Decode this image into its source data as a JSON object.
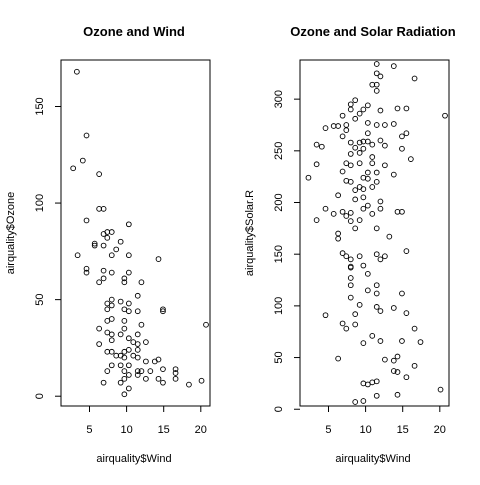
{
  "chart_data": [
    {
      "type": "scatter",
      "title": "Ozone and Wind",
      "xlabel": "airquality$Wind",
      "ylabel": "airquality$Ozone",
      "xlim": [
        1.7,
        20.7
      ],
      "ylim": [
        -3,
        172
      ],
      "xticks": [
        5,
        10,
        15,
        20
      ],
      "yticks": [
        0,
        50,
        100,
        150
      ],
      "grid": false,
      "points": [
        [
          3.3,
          168
        ],
        [
          4.6,
          135
        ],
        [
          4.1,
          122
        ],
        [
          2.8,
          118
        ],
        [
          6.3,
          115
        ],
        [
          4.6,
          91
        ],
        [
          6.9,
          97
        ],
        [
          6.3,
          97
        ],
        [
          10.3,
          89
        ],
        [
          7.4,
          85
        ],
        [
          6.9,
          84
        ],
        [
          8.0,
          85
        ],
        [
          7.4,
          82
        ],
        [
          5.7,
          79
        ],
        [
          5.7,
          78
        ],
        [
          6.9,
          78
        ],
        [
          9.2,
          80
        ],
        [
          8.6,
          76
        ],
        [
          8.0,
          73
        ],
        [
          10.3,
          73
        ],
        [
          3.4,
          73
        ],
        [
          14.3,
          71
        ],
        [
          4.6,
          66
        ],
        [
          4.6,
          64
        ],
        [
          6.9,
          65
        ],
        [
          8.0,
          64
        ],
        [
          10.3,
          64
        ],
        [
          6.9,
          61
        ],
        [
          9.7,
          61
        ],
        [
          6.3,
          59
        ],
        [
          12.0,
          59
        ],
        [
          9.7,
          59
        ],
        [
          11.5,
          52
        ],
        [
          8.0,
          50
        ],
        [
          9.2,
          49
        ],
        [
          10.3,
          48
        ],
        [
          7.4,
          48
        ],
        [
          8.0,
          47
        ],
        [
          7.4,
          45
        ],
        [
          9.7,
          45
        ],
        [
          10.3,
          44
        ],
        [
          11.5,
          44
        ],
        [
          14.9,
          45
        ],
        [
          14.9,
          44
        ],
        [
          8.0,
          40
        ],
        [
          7.4,
          39
        ],
        [
          9.7,
          39
        ],
        [
          12.0,
          37
        ],
        [
          20.7,
          37
        ],
        [
          6.3,
          35
        ],
        [
          9.7,
          35
        ],
        [
          7.4,
          33
        ],
        [
          8.0,
          32
        ],
        [
          9.2,
          32
        ],
        [
          11.5,
          32
        ],
        [
          10.3,
          30
        ],
        [
          8.0,
          29
        ],
        [
          10.9,
          28
        ],
        [
          12.6,
          28
        ],
        [
          11.5,
          27
        ],
        [
          6.3,
          27
        ],
        [
          7.4,
          23
        ],
        [
          8.0,
          23
        ],
        [
          9.7,
          23
        ],
        [
          10.3,
          24
        ],
        [
          11.5,
          24
        ],
        [
          8.6,
          21
        ],
        [
          9.2,
          21
        ],
        [
          10.9,
          21
        ],
        [
          9.7,
          20
        ],
        [
          11.5,
          20
        ],
        [
          14.3,
          19
        ],
        [
          12.6,
          18
        ],
        [
          13.8,
          18
        ],
        [
          8.0,
          16
        ],
        [
          9.2,
          16
        ],
        [
          10.3,
          16
        ],
        [
          7.4,
          13
        ],
        [
          9.7,
          13
        ],
        [
          11.5,
          13
        ],
        [
          12.0,
          13
        ],
        [
          13.2,
          13
        ],
        [
          14.9,
          14
        ],
        [
          16.6,
          14
        ],
        [
          16.6,
          12
        ],
        [
          10.3,
          11
        ],
        [
          11.5,
          11
        ],
        [
          9.7,
          9
        ],
        [
          12.6,
          9
        ],
        [
          14.3,
          9
        ],
        [
          16.6,
          9
        ],
        [
          14.9,
          7
        ],
        [
          20.1,
          8
        ],
        [
          6.9,
          7
        ],
        [
          9.2,
          7
        ],
        [
          18.4,
          6
        ],
        [
          10.3,
          4
        ],
        [
          9.7,
          1
        ]
      ]
    },
    {
      "type": "scatter",
      "title": "Ozone and Solar Radiation",
      "xlabel": "airquality$Wind",
      "ylabel": "airquality$Solar.R",
      "xlim": [
        1.7,
        20.7
      ],
      "ylim": [
        7,
        334
      ],
      "xticks": [
        5,
        10,
        15,
        20
      ],
      "yticks": [
        0,
        50,
        100,
        150,
        200,
        250,
        300
      ],
      "grid": false,
      "points": [
        [
          11.5,
          334
        ],
        [
          13.8,
          332
        ],
        [
          11.5,
          325
        ],
        [
          12.0,
          322
        ],
        [
          16.6,
          320
        ],
        [
          11.5,
          314
        ],
        [
          10.9,
          314
        ],
        [
          11.5,
          308
        ],
        [
          8.6,
          299
        ],
        [
          8.0,
          295
        ],
        [
          10.3,
          294
        ],
        [
          14.3,
          291
        ],
        [
          8.0,
          290
        ],
        [
          9.7,
          290
        ],
        [
          12.0,
          289
        ],
        [
          15.5,
          291
        ],
        [
          9.2,
          286
        ],
        [
          20.7,
          284
        ],
        [
          6.9,
          284
        ],
        [
          8.6,
          281
        ],
        [
          10.3,
          277
        ],
        [
          7.4,
          275
        ],
        [
          11.5,
          275
        ],
        [
          13.8,
          276
        ],
        [
          12.6,
          275
        ],
        [
          4.6,
          272
        ],
        [
          5.7,
          274
        ],
        [
          6.3,
          274
        ],
        [
          7.4,
          270
        ],
        [
          10.3,
          267
        ],
        [
          15.5,
          267
        ],
        [
          14.9,
          264
        ],
        [
          6.9,
          264
        ],
        [
          12.0,
          260
        ],
        [
          9.7,
          259
        ],
        [
          9.2,
          258
        ],
        [
          8.0,
          258
        ],
        [
          10.3,
          259
        ],
        [
          10.9,
          256
        ],
        [
          3.4,
          256
        ],
        [
          12.6,
          255
        ],
        [
          4.1,
          254
        ],
        [
          8.6,
          253
        ],
        [
          9.7,
          252
        ],
        [
          14.9,
          252
        ],
        [
          9.2,
          248
        ],
        [
          8.0,
          247
        ],
        [
          10.9,
          244
        ],
        [
          16.1,
          242
        ],
        [
          7.4,
          238
        ],
        [
          9.2,
          238
        ],
        [
          10.9,
          238
        ],
        [
          3.4,
          237
        ],
        [
          8.0,
          236
        ],
        [
          12.6,
          236
        ],
        [
          6.9,
          230
        ],
        [
          10.3,
          229
        ],
        [
          11.5,
          229
        ],
        [
          13.8,
          227
        ],
        [
          9.7,
          224
        ],
        [
          2.3,
          224
        ],
        [
          10.3,
          223
        ],
        [
          7.4,
          221
        ],
        [
          8.0,
          220
        ],
        [
          11.5,
          220
        ],
        [
          9.2,
          215
        ],
        [
          10.9,
          215
        ],
        [
          9.7,
          213
        ],
        [
          8.6,
          212
        ],
        [
          6.3,
          207
        ],
        [
          9.7,
          205
        ],
        [
          8.6,
          203
        ],
        [
          12.0,
          201
        ],
        [
          10.3,
          197
        ],
        [
          9.7,
          194
        ],
        [
          4.6,
          194
        ],
        [
          12.0,
          194
        ],
        [
          14.9,
          191
        ],
        [
          14.3,
          191
        ],
        [
          8.0,
          190
        ],
        [
          6.9,
          191
        ],
        [
          10.9,
          189
        ],
        [
          5.7,
          189
        ],
        [
          7.4,
          187
        ],
        [
          3.4,
          183
        ],
        [
          9.2,
          183
        ],
        [
          8.0,
          182
        ],
        [
          11.5,
          175
        ],
        [
          8.6,
          175
        ],
        [
          6.3,
          170
        ],
        [
          13.2,
          167
        ],
        [
          6.3,
          165
        ],
        [
          15.5,
          153
        ],
        [
          11.5,
          150
        ],
        [
          7.4,
          148
        ],
        [
          6.9,
          151
        ],
        [
          9.2,
          148
        ],
        [
          12.6,
          148
        ],
        [
          12.0,
          145
        ],
        [
          8.0,
          145
        ],
        [
          9.7,
          139
        ],
        [
          8.0,
          138
        ],
        [
          8.0,
          137
        ],
        [
          10.3,
          131
        ],
        [
          8.0,
          127
        ],
        [
          8.0,
          120
        ],
        [
          11.5,
          120
        ],
        [
          10.3,
          115
        ],
        [
          11.5,
          112
        ],
        [
          14.9,
          112
        ],
        [
          8.0,
          108
        ],
        [
          9.2,
          101
        ],
        [
          11.5,
          99
        ],
        [
          12.0,
          95
        ],
        [
          13.8,
          98
        ],
        [
          15.5,
          93
        ],
        [
          8.6,
          92
        ],
        [
          4.6,
          91
        ],
        [
          6.9,
          83
        ],
        [
          8.6,
          82
        ],
        [
          7.4,
          78
        ],
        [
          16.6,
          78
        ],
        [
          10.9,
          71
        ],
        [
          12.0,
          66
        ],
        [
          14.9,
          66
        ],
        [
          17.4,
          65
        ],
        [
          9.7,
          64
        ],
        [
          14.3,
          51
        ],
        [
          6.3,
          49
        ],
        [
          12.6,
          48
        ],
        [
          13.8,
          47
        ],
        [
          16.6,
          42
        ],
        [
          13.8,
          37
        ],
        [
          14.3,
          36
        ],
        [
          15.5,
          31
        ],
        [
          11.5,
          27
        ],
        [
          10.9,
          26
        ],
        [
          9.7,
          25
        ],
        [
          10.3,
          24
        ],
        [
          20.1,
          19
        ],
        [
          11.5,
          13
        ],
        [
          14.3,
          14
        ],
        [
          9.7,
          8
        ],
        [
          8.6,
          7
        ]
      ]
    }
  ]
}
